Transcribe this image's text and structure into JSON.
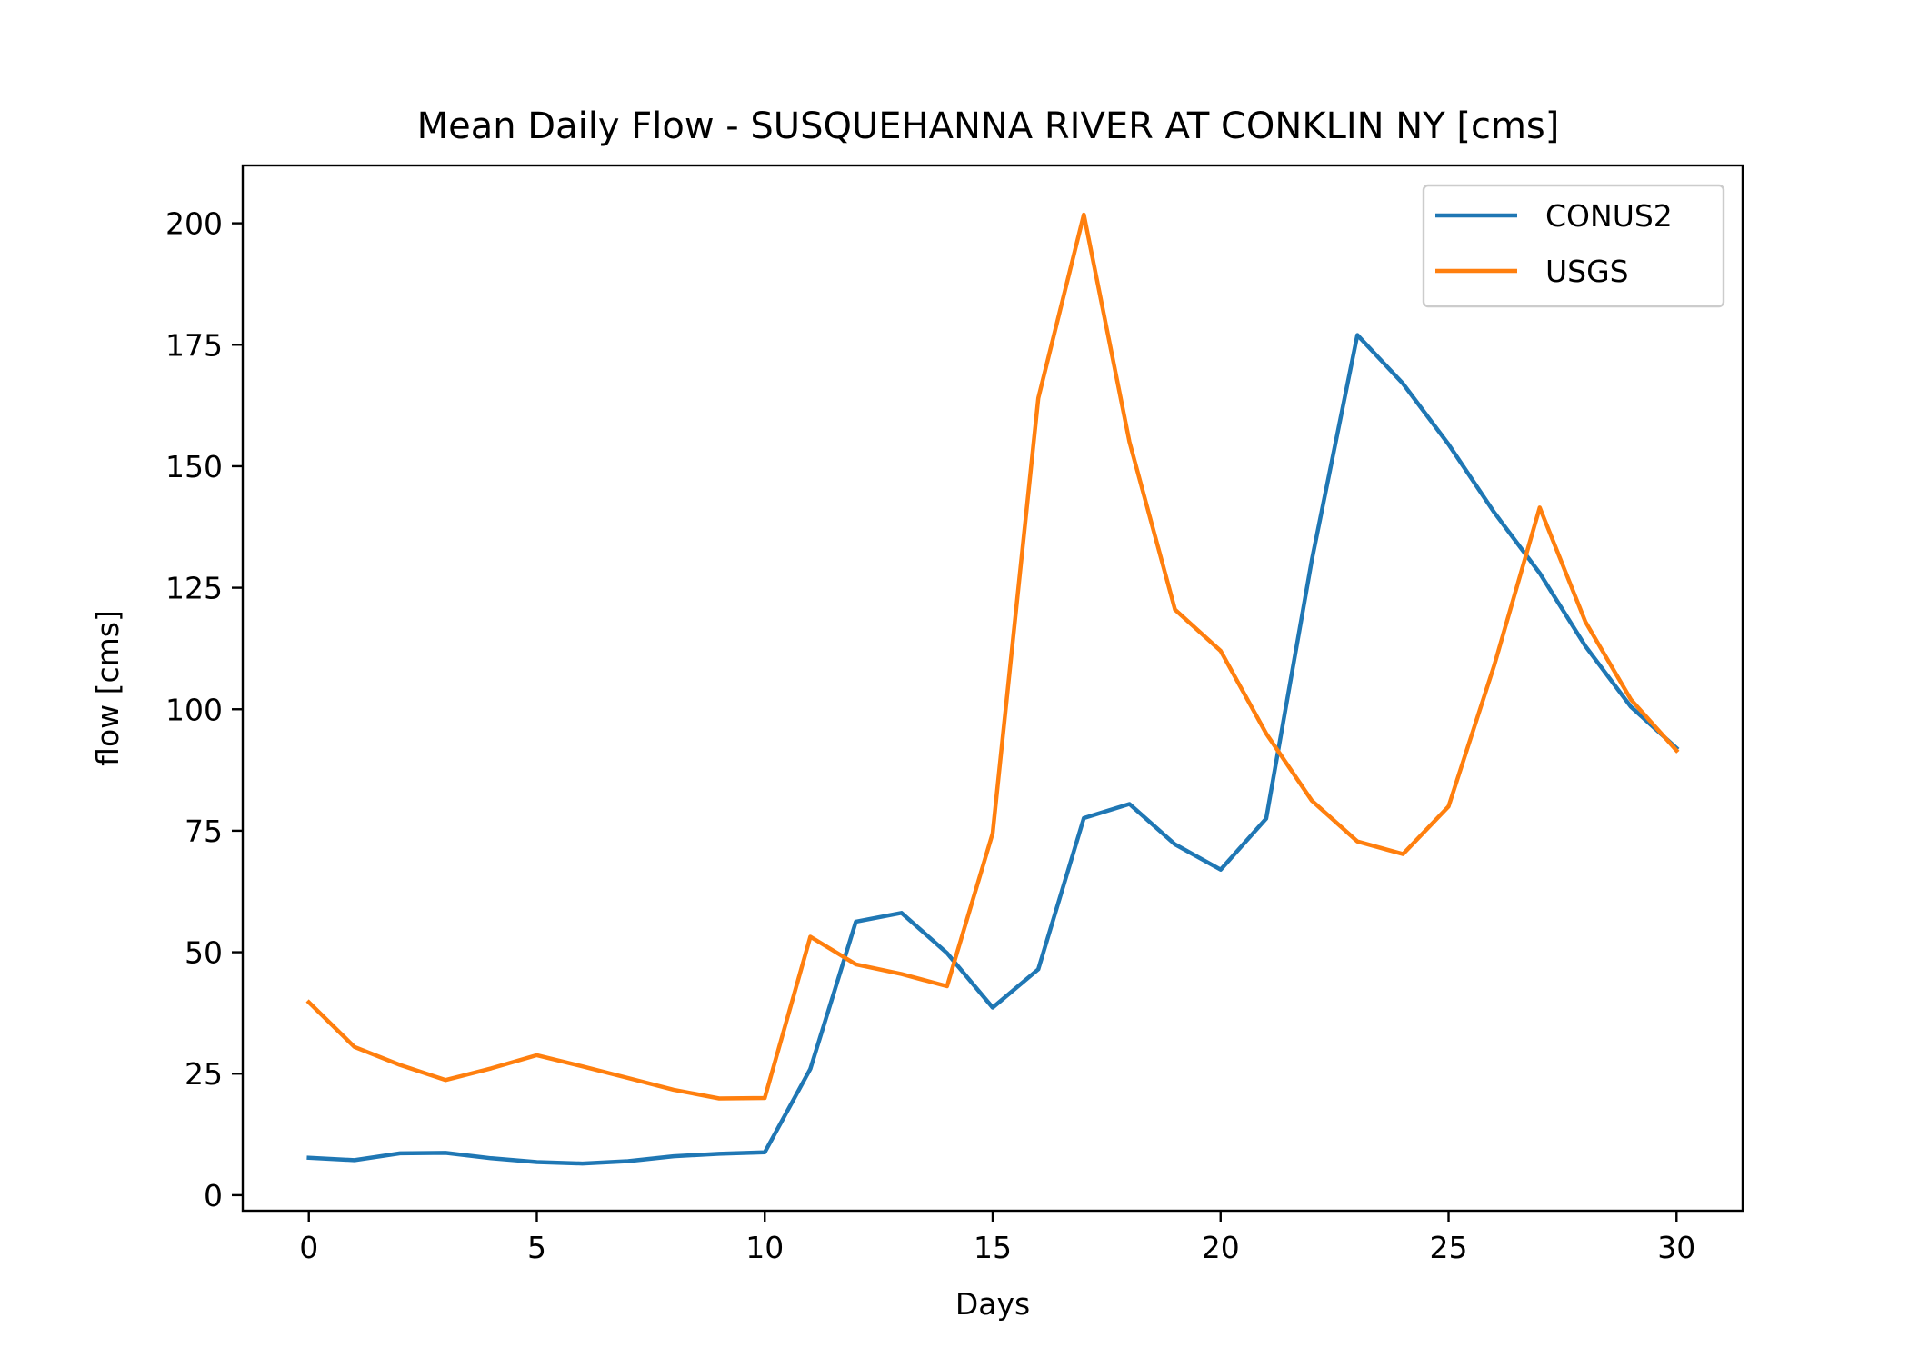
{
  "chart_data": {
    "type": "line",
    "title": "Mean Daily Flow - SUSQUEHANNA RIVER AT CONKLIN NY [cms]",
    "xlabel": "Days",
    "ylabel": "flow [cms]",
    "xlim": [
      -1.45,
      31.45
    ],
    "ylim": [
      -3.2,
      211.9
    ],
    "xticks": [
      0,
      5,
      10,
      15,
      20,
      25,
      30
    ],
    "yticks": [
      0,
      25,
      50,
      75,
      100,
      125,
      150,
      175,
      200
    ],
    "grid": false,
    "legend_position": "top-right",
    "x": [
      0,
      1,
      2,
      3,
      4,
      5,
      6,
      7,
      8,
      9,
      10,
      11,
      12,
      13,
      14,
      15,
      16,
      17,
      18,
      19,
      20,
      21,
      22,
      23,
      24,
      25,
      26,
      27,
      28,
      29,
      30
    ],
    "series": [
      {
        "name": "CONUS2",
        "color": "#1f77b4",
        "values": [
          7.7,
          7.2,
          8.6,
          8.7,
          7.6,
          6.8,
          6.5,
          7.0,
          8.0,
          8.5,
          8.8,
          26.0,
          56.3,
          58.1,
          49.8,
          38.6,
          46.5,
          77.6,
          80.5,
          72.2,
          67.0,
          77.5,
          130.7,
          177.0,
          167.0,
          154.5,
          140.5,
          128.0,
          113.0,
          100.5,
          92.0
        ]
      },
      {
        "name": "USGS",
        "color": "#ff7f0e",
        "values": [
          39.7,
          30.5,
          26.8,
          23.7,
          26.1,
          28.8,
          26.5,
          24.1,
          21.7,
          19.9,
          20.0,
          53.2,
          47.5,
          45.5,
          43.0,
          74.5,
          164.0,
          201.8,
          155.0,
          120.5,
          112.0,
          95.0,
          81.2,
          72.8,
          70.2,
          80.0,
          109.0,
          141.5,
          118.0,
          102.0,
          91.5
        ]
      }
    ]
  }
}
